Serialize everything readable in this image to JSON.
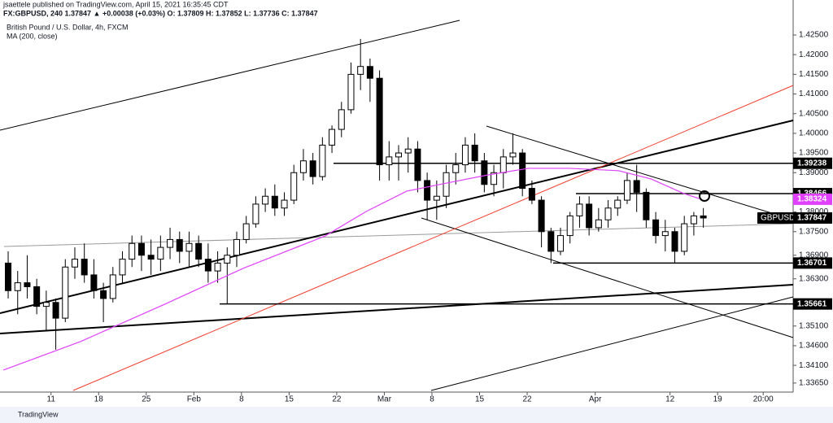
{
  "header": {
    "publisher": "jsaettele published on TradingView.com, April 15, 2021 16:35:45 CDT",
    "quote": "FX:GBPUSD, 240 1.37847 ▲ +0.00038 (+0.03%) O: 1.37809 H: 1.37852 L: 1.37736 C: 1.37847"
  },
  "footer": {
    "brand": "TradingView"
  },
  "chart_data": {
    "type": "candlestick",
    "title": "British Pound / U.S. Dollar, 4h, FXCM",
    "x": [
      0.7,
      2.1,
      3.5,
      4.9,
      6.3,
      7.7,
      9.1,
      10.5,
      11.9,
      13.3,
      14.7,
      16.1,
      17.5,
      18.9,
      20.3,
      21.7,
      23.1,
      24.5,
      25.9,
      27.3,
      28.7,
      30.1,
      31.5,
      32.9,
      34.3,
      35.7,
      37.1,
      38.5,
      39.9,
      41.3,
      42.7,
      44.1,
      45.5,
      46.9,
      48.3,
      49.7,
      51.1,
      52.5,
      53.9,
      55.3,
      56.7,
      58.1,
      59.5,
      60.9,
      62.3,
      63.7,
      65.1,
      66.5,
      67.9,
      69.3,
      70.7,
      72.1,
      73.5,
      74.9,
      76.3,
      77.7,
      79.1,
      80.5,
      81.9,
      83.3,
      84.7,
      86.1,
      87.5,
      88.9,
      90.3,
      91.7,
      93.1,
      94.5,
      95.9,
      97.3,
      98.7,
      100.1,
      101.5,
      102.9
    ],
    "open": [
      1.367,
      1.36,
      1.362,
      1.361,
      1.356,
      1.357,
      1.353,
      1.366,
      1.368,
      1.364,
      1.36,
      1.358,
      1.364,
      1.368,
      1.372,
      1.369,
      1.368,
      1.371,
      1.373,
      1.37,
      1.372,
      1.368,
      1.365,
      1.367,
      1.369,
      1.373,
      1.377,
      1.382,
      1.384,
      1.381,
      1.383,
      1.39,
      1.393,
      1.389,
      1.397,
      1.401,
      1.406,
      1.415,
      1.417,
      1.414,
      1.392,
      1.394,
      1.395,
      1.396,
      1.388,
      1.383,
      1.384,
      1.39,
      1.392,
      1.397,
      1.393,
      1.387,
      1.39,
      1.394,
      1.395,
      1.386,
      1.383,
      1.375,
      1.37,
      1.374,
      1.379,
      1.382,
      1.376,
      1.378,
      1.381,
      1.383,
      1.388,
      1.385,
      1.378,
      1.374,
      1.375,
      1.37,
      1.377,
      1.379
    ],
    "high": [
      1.37,
      1.365,
      1.369,
      1.363,
      1.36,
      1.358,
      1.368,
      1.371,
      1.372,
      1.368,
      1.362,
      1.366,
      1.37,
      1.374,
      1.374,
      1.373,
      1.374,
      1.376,
      1.375,
      1.375,
      1.374,
      1.372,
      1.37,
      1.371,
      1.375,
      1.379,
      1.384,
      1.386,
      1.387,
      1.385,
      1.392,
      1.396,
      1.395,
      1.399,
      1.402,
      1.408,
      1.418,
      1.424,
      1.419,
      1.416,
      1.398,
      1.397,
      1.399,
      1.398,
      1.39,
      1.388,
      1.392,
      1.395,
      1.399,
      1.4,
      1.395,
      1.392,
      1.396,
      1.4,
      1.396,
      1.388,
      1.384,
      1.376,
      1.376,
      1.38,
      1.384,
      1.384,
      1.381,
      1.383,
      1.384,
      1.39,
      1.392,
      1.386,
      1.38,
      1.378,
      1.376,
      1.379,
      1.38,
      1.381
    ],
    "low": [
      1.358,
      1.354,
      1.358,
      1.354,
      1.35,
      1.345,
      1.352,
      1.363,
      1.362,
      1.358,
      1.352,
      1.357,
      1.362,
      1.366,
      1.365,
      1.364,
      1.365,
      1.368,
      1.367,
      1.366,
      1.366,
      1.362,
      1.362,
      1.3566,
      1.366,
      1.372,
      1.376,
      1.38,
      1.379,
      1.379,
      1.382,
      1.388,
      1.387,
      1.388,
      1.395,
      1.399,
      1.405,
      1.411,
      1.408,
      1.388,
      1.388,
      1.388,
      1.39,
      1.385,
      1.378,
      1.378,
      1.381,
      1.387,
      1.39,
      1.39,
      1.385,
      1.384,
      1.386,
      1.392,
      1.384,
      1.382,
      1.371,
      1.367,
      1.369,
      1.372,
      1.376,
      1.374,
      1.375,
      1.376,
      1.379,
      1.382,
      1.38,
      1.376,
      1.372,
      1.37,
      1.367,
      1.369,
      1.374,
      1.376
    ],
    "close": [
      1.36,
      1.362,
      1.361,
      1.356,
      1.357,
      1.353,
      1.366,
      1.368,
      1.364,
      1.36,
      1.358,
      1.364,
      1.368,
      1.372,
      1.369,
      1.368,
      1.371,
      1.373,
      1.37,
      1.372,
      1.368,
      1.365,
      1.367,
      1.369,
      1.373,
      1.377,
      1.382,
      1.384,
      1.381,
      1.383,
      1.39,
      1.393,
      1.389,
      1.397,
      1.401,
      1.406,
      1.415,
      1.417,
      1.414,
      1.392,
      1.394,
      1.395,
      1.396,
      1.388,
      1.383,
      1.384,
      1.39,
      1.392,
      1.397,
      1.393,
      1.387,
      1.39,
      1.394,
      1.395,
      1.386,
      1.383,
      1.375,
      1.37,
      1.374,
      1.379,
      1.382,
      1.376,
      1.378,
      1.381,
      1.383,
      1.388,
      1.385,
      1.378,
      1.374,
      1.375,
      1.37,
      1.377,
      1.379,
      1.37847
    ],
    "up_color": "#ffffff",
    "down_color": "#000000",
    "ma": {
      "name": "MA (200, close)",
      "color": "#e040fb",
      "x": [
        0,
        11.4,
        23.4,
        35.3,
        47.3,
        53.3,
        59.3,
        65.3,
        71.2,
        77.2,
        83.2,
        90.4,
        95.2,
        100,
        102.3
      ],
      "values": [
        1.3398,
        1.3471,
        1.3563,
        1.3657,
        1.3739,
        1.3801,
        1.3853,
        1.3874,
        1.3894,
        1.3911,
        1.3911,
        1.3905,
        1.3884,
        1.3847,
        1.3834
      ]
    },
    "levels": [
      {
        "value": 1.39238,
        "label": "1.39238"
      },
      {
        "value": 1.38466,
        "label": "1.38466"
      },
      {
        "value": 1.36701,
        "label": "1.36701"
      },
      {
        "value": 1.35661,
        "label": "1.35661"
      }
    ],
    "ma_label": {
      "value": 1.38324,
      "label": "1.38324"
    },
    "symbol": "GBPUSD",
    "last_price": {
      "value": 1.37847,
      "label": "1.37847"
    },
    "xlim": [
      -0.5,
      116.1
    ],
    "ylim": [
      1.3342,
      1.4339
    ],
    "xticks": [
      {
        "value": 7,
        "label": "11"
      },
      {
        "value": 14,
        "label": "18"
      },
      {
        "value": 21,
        "label": "25"
      },
      {
        "value": 28,
        "label": "Feb"
      },
      {
        "value": 35,
        "label": "8"
      },
      {
        "value": 42,
        "label": "15"
      },
      {
        "value": 49,
        "label": "22"
      },
      {
        "value": 56,
        "label": "Mar"
      },
      {
        "value": 63,
        "label": "8"
      },
      {
        "value": 70,
        "label": "15"
      },
      {
        "value": 77,
        "label": "22"
      },
      {
        "value": 87,
        "label": "Apr"
      },
      {
        "value": 98,
        "label": "12"
      },
      {
        "value": 105,
        "label": "19"
      },
      {
        "value": 111.7,
        "label": "20:00"
      }
    ],
    "yticks": [
      {
        "value": 1.425,
        "label": "1.42500"
      },
      {
        "value": 1.42,
        "label": "1.42000"
      },
      {
        "value": 1.415,
        "label": "1.41500"
      },
      {
        "value": 1.41,
        "label": "1.41000"
      },
      {
        "value": 1.405,
        "label": "1.40500"
      },
      {
        "value": 1.4,
        "label": "1.40000"
      },
      {
        "value": 1.395,
        "label": "1.39500"
      },
      {
        "value": 1.39,
        "label": "1.39000"
      },
      {
        "value": 1.38,
        "label": "1.38000"
      },
      {
        "value": 1.375,
        "label": "1.37500"
      },
      {
        "value": 1.369,
        "label": "1.36900"
      },
      {
        "value": 1.363,
        "label": "1.36300"
      },
      {
        "value": 1.351,
        "label": "1.35100"
      },
      {
        "value": 1.346,
        "label": "1.34600"
      },
      {
        "value": 1.341,
        "label": "1.34100"
      },
      {
        "value": 1.3365,
        "label": "1.33650"
      }
    ]
  }
}
